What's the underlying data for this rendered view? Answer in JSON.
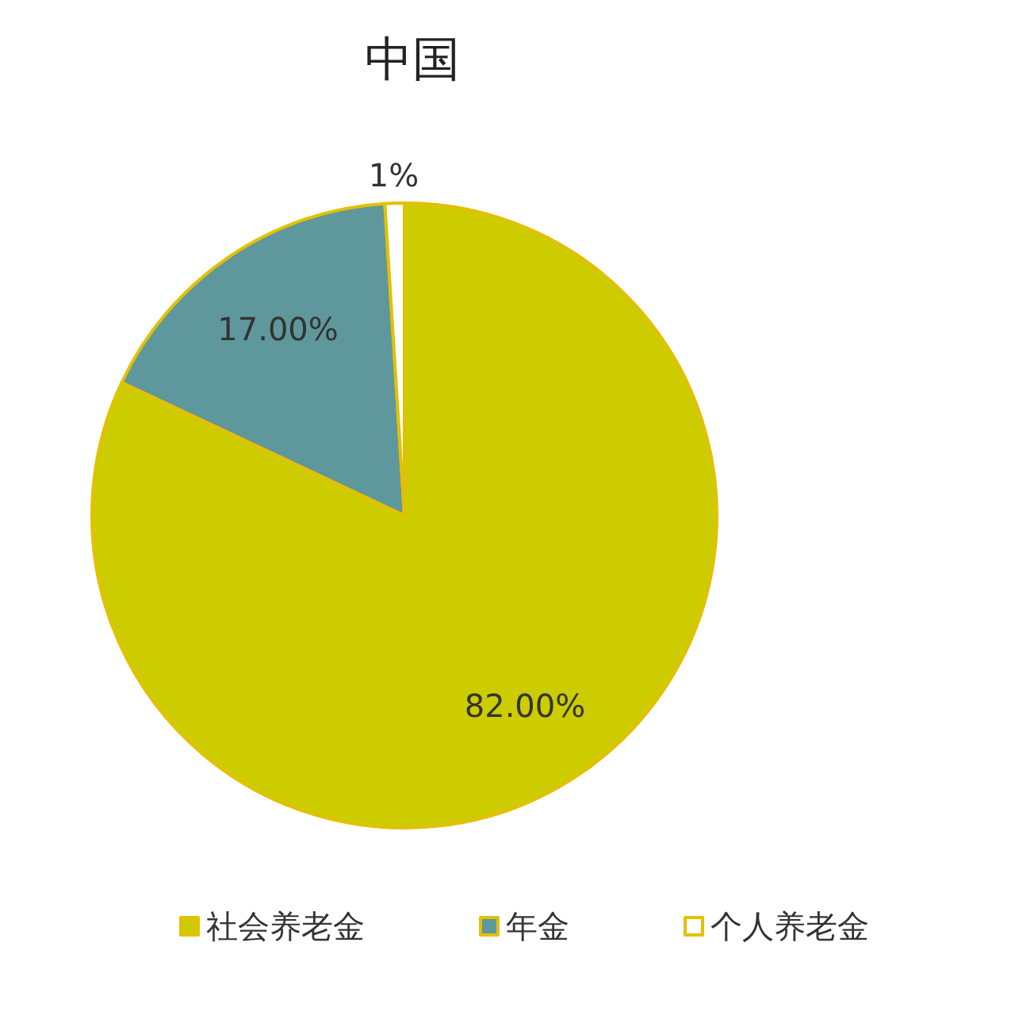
{
  "chart_data": {
    "type": "pie",
    "title": "中国",
    "categories": [
      "社会养老金",
      "年金",
      "个人养老金"
    ],
    "values": [
      82,
      17,
      1
    ],
    "colors": [
      "#cccc00",
      "#5f989c",
      "#ffffff"
    ],
    "value_labels": [
      "82.00%",
      "17.00%",
      "1%"
    ],
    "legend": "bottom"
  }
}
